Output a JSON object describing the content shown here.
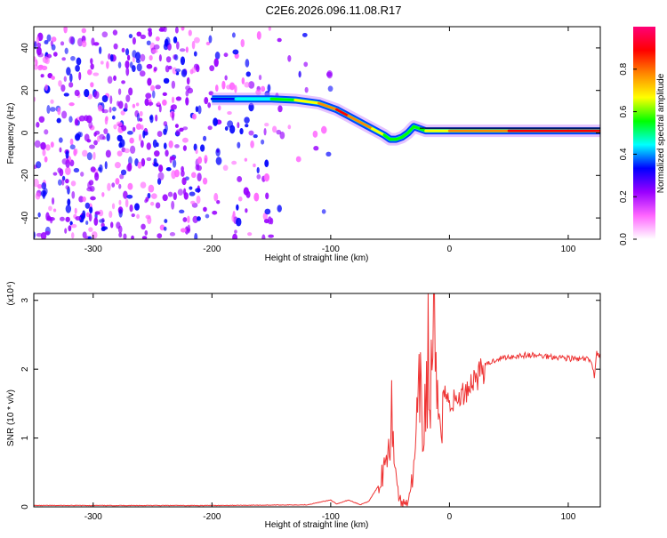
{
  "title": "C2E6.2026.096.11.08.R17",
  "chart_data": [
    {
      "type": "heatmap",
      "xlabel": "Height of straight line (km)",
      "ylabel": "Frequency (Hz)",
      "xlim": [
        -350,
        127
      ],
      "ylim": [
        -50,
        50
      ],
      "xticks": [
        -300,
        -200,
        -100,
        0,
        100
      ],
      "yticks": [
        -40,
        -20,
        0,
        20,
        40
      ],
      "colorbar": {
        "label": "Normalized spectral amplitude",
        "range": [
          0,
          1
        ],
        "ticks": [
          "0.0",
          "0.2",
          "0.4",
          "0.6",
          "0.8"
        ],
        "colors": [
          "#ffffff",
          "#ff66ff",
          "#9900ff",
          "#0000ff",
          "#00ffff",
          "#00ff00",
          "#ffff00",
          "#ff8800",
          "#ff0000",
          "#ff0077"
        ]
      },
      "ridge": {
        "x": [
          -200,
          -180,
          -150,
          -130,
          -110,
          -95,
          -85,
          -75,
          -65,
          -55,
          -50,
          -45,
          -40,
          -35,
          -30,
          -25,
          -20,
          0,
          50,
          100,
          127
        ],
        "y": [
          16,
          16,
          16,
          15.5,
          14,
          11,
          8,
          5,
          2,
          -1,
          -3,
          -3,
          -2,
          0,
          3,
          2,
          1,
          1,
          1,
          1,
          1
        ],
        "strength": [
          0.3,
          0.35,
          0.45,
          0.6,
          0.75,
          0.85,
          0.85,
          0.8,
          0.7,
          0.6,
          0.6,
          0.55,
          0.5,
          0.5,
          0.55,
          0.5,
          0.6,
          0.7,
          0.9,
          0.95,
          0.9
        ]
      }
    },
    {
      "type": "line",
      "xlabel": "Height of straight line (km)",
      "ylabel": "SNR (10 * v/v)",
      "yscale_label": "(x10⁴)",
      "xlim": [
        -350,
        127
      ],
      "ylim": [
        0,
        3.1
      ],
      "xticks": [
        -300,
        -200,
        -100,
        0,
        100
      ],
      "yticks": [
        0,
        1,
        2,
        3
      ],
      "color": "#ee3333",
      "series": [
        {
          "x": [
            -350,
            -200,
            -120,
            -100,
            -95,
            -85,
            -75,
            -68,
            -60,
            -55,
            -50,
            -48,
            -46,
            -44,
            -42,
            -40,
            -38,
            -35,
            -30,
            -28,
            -25,
            -22,
            -20,
            -18,
            -16,
            -14,
            -12,
            -10,
            -5,
            0,
            10,
            20,
            30,
            40,
            50,
            60,
            70,
            80,
            90,
            100,
            110,
            115,
            120,
            122,
            124,
            127
          ],
          "y": [
            0.02,
            0.02,
            0.03,
            0.1,
            0.04,
            0.1,
            0.03,
            0.08,
            0.3,
            0.6,
            1.2,
            1.45,
            0.7,
            0.3,
            0.1,
            0.05,
            0.05,
            0.1,
            0.5,
            1.0,
            1.7,
            1.0,
            1.6,
            2.2,
            1.2,
            3.1,
            1.8,
            1.3,
            1.7,
            1.5,
            1.6,
            1.85,
            2.05,
            2.15,
            2.18,
            2.2,
            2.2,
            2.19,
            2.18,
            2.16,
            2.14,
            2.15,
            2.1,
            1.9,
            2.25,
            2.15
          ]
        }
      ]
    }
  ]
}
